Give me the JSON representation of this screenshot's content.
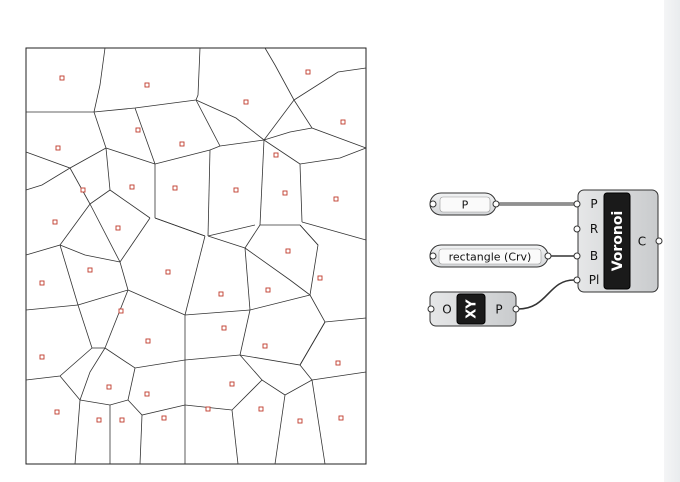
{
  "definition": {
    "point_param": {
      "label": "P"
    },
    "curve_param": {
      "label": "rectangle (Crv)"
    },
    "voronoi_component": {
      "title": "Voronoi",
      "inputs": [
        "P",
        "R",
        "B",
        "Pl"
      ],
      "outputs": [
        "C"
      ]
    },
    "xy_plane_component": {
      "title": "XY",
      "input": "O",
      "output": "P"
    }
  },
  "colors": {
    "cell_edge": "#222222",
    "seed_point": "#c0392b",
    "component_body": "#d7d9db",
    "title_plate": "#1a1a1a",
    "wire": "#333333"
  },
  "icons": [
    "voronoi-component",
    "xy-plane-component"
  ]
}
